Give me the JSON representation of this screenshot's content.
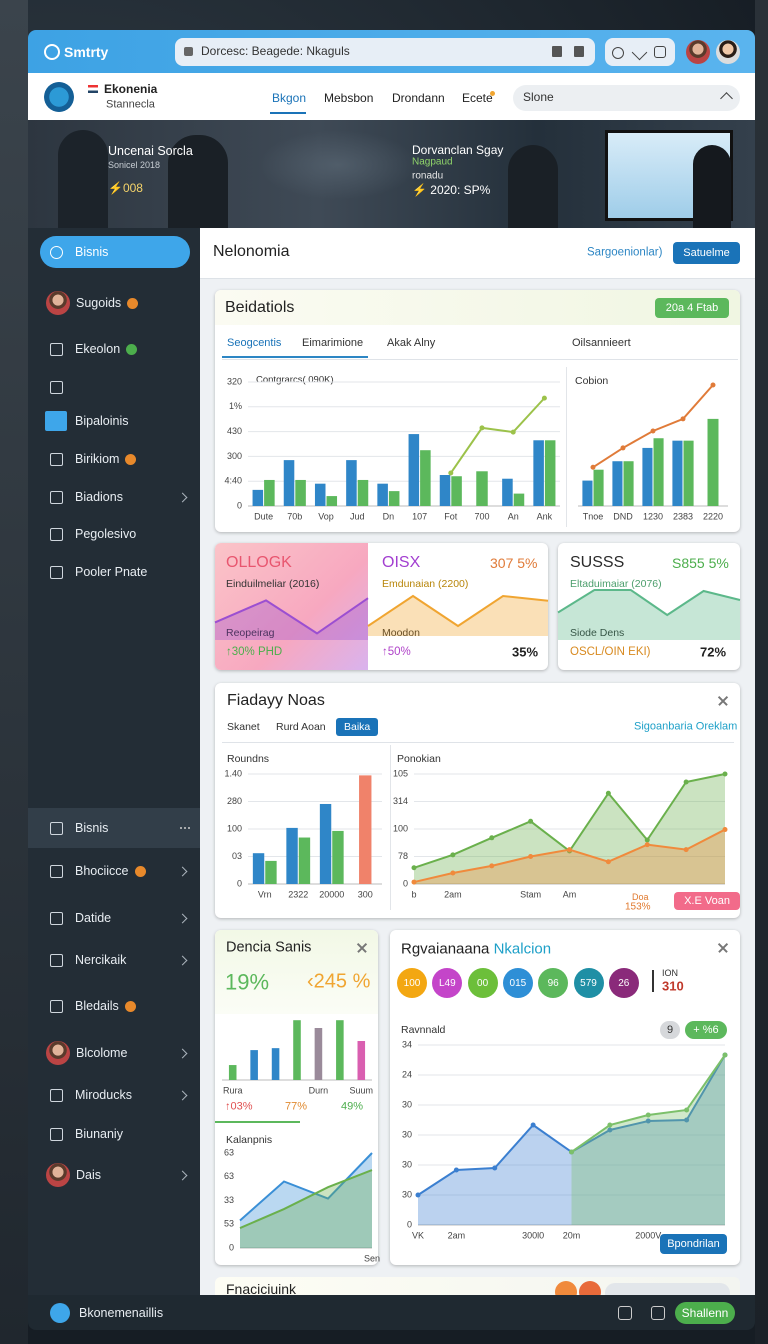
{
  "browser": {
    "app_name": "Smtrty",
    "address": "Dorcesc: Beagede: Nkaguls"
  },
  "header": {
    "brand": "Ekonenia",
    "brand_sub": "Stannecla",
    "nav": [
      "Bkgon",
      "Mebsbon",
      "Drondann",
      "Ecete"
    ],
    "search": "Slone"
  },
  "banner": {
    "left_title": "Uncenai Sorcla",
    "left_sub": "Sonicel 2018",
    "left_stat": "⚡008",
    "right_title": "Dorvanclan Sgay",
    "right_sub": "Nagpaud",
    "right_note": "ronadu",
    "right_stat": "⚡ 2020: SP%"
  },
  "sidebar": {
    "top": [
      {
        "label": "Bisnis",
        "active": true
      },
      {
        "label": "Sugoids",
        "avatar": true,
        "badge": "#e8892b"
      },
      {
        "label": "Ekeolon",
        "badge": "#4cae4c"
      },
      {
        "label": "Bipaloinis",
        "highlight_icon": true
      },
      {
        "label": "Birikiom",
        "badge": "#e8892b"
      },
      {
        "label": "Biadions",
        "submenu": true
      },
      {
        "label": "Pegolesivo"
      },
      {
        "label": "Pooler Pnate"
      }
    ],
    "bottom": [
      {
        "label": "Bisnis",
        "selected": true
      },
      {
        "label": "Bhociicce",
        "badge": "#e8892b",
        "submenu": true
      },
      {
        "label": "Datide",
        "submenu": true
      },
      {
        "label": "Nercikaik",
        "submenu": true
      },
      {
        "label": "Bledails",
        "badge": "#e8892b"
      },
      {
        "label": "Blcolome",
        "avatar": true,
        "submenu": true
      },
      {
        "label": "Miroducks",
        "submenu": true
      },
      {
        "label": "Biunaniy"
      },
      {
        "label": "Dais",
        "avatar": true,
        "submenu": true
      }
    ]
  },
  "page": {
    "title": "Nelonomia",
    "link": "Sargoenionlar)",
    "button": "Satuelme"
  },
  "overview": {
    "title": "Beidatiols",
    "badge": "20a 4 Ftab",
    "tabs": [
      "Seogcentis",
      "Eimarimione",
      "Akak Alny",
      "Oilsannieert"
    ],
    "charts": [
      {
        "type": "bar",
        "legend": "Contgrarcs( 090K)",
        "categories": [
          "Dute",
          "70b",
          "Vop",
          "Jud",
          "Dn",
          "107",
          "Fot",
          "700",
          "An",
          "Ank"
        ],
        "series": [
          {
            "color": "#2f86c8",
            "values": [
              65,
              185,
              90,
              185,
              90,
              290,
              125,
              null,
              110,
              265
            ]
          },
          {
            "color": "#5cb85c",
            "values": [
              105,
              105,
              40,
              105,
              60,
              225,
              120,
              140,
              50,
              265
            ]
          },
          {
            "kind": "line",
            "color": "#9cc24a",
            "values": [
              null,
              null,
              null,
              null,
              null,
              null,
              133,
              315,
              298,
              435
            ]
          }
        ],
        "ylim": [
          0,
          500
        ],
        "yticks": [
          0,
          {
            "value": 100,
            "label": "4:40"
          },
          {
            "value": 200,
            "label": "300"
          },
          {
            "value": 300,
            "label": "430"
          },
          {
            "value": 400,
            "label": "1%"
          },
          {
            "value": 500,
            "label": "320"
          }
        ],
        "grid": true
      },
      {
        "type": "bar",
        "title": "Cobion",
        "categories": [
          "Tnoe",
          "DND",
          "1230",
          "2383",
          "2220"
        ],
        "series": [
          {
            "color": "#2f86c8",
            "values": [
              105,
              185,
              240,
              270,
              null
            ]
          },
          {
            "color": "#5cb85c",
            "values": [
              150,
              185,
              280,
              270,
              360
            ]
          },
          {
            "kind": "line",
            "color": "#e07b39",
            "values": [
              160,
              240,
              310,
              360,
              500
            ]
          }
        ],
        "ylim": [
          0,
          500
        ],
        "grid": true
      }
    ]
  },
  "kpis": [
    {
      "title": "OLLOGK",
      "subtitle": "Einduilmeliar (2016)",
      "label": "Reopeirag",
      "change": "↑30% PHD",
      "chart": {
        "type": "area",
        "series": [
          {
            "color": "#9b4fd1",
            "values": [
              40,
              90,
              15,
              95
            ]
          }
        ],
        "ylim": [
          0,
          100
        ]
      }
    },
    {
      "title": "OISX",
      "figure": "307 5%",
      "subtitle": "Emdunaian (2200)",
      "label": "Moodon",
      "change": "↑50%",
      "share": "35%",
      "chart": {
        "type": "area",
        "series": [
          {
            "color": "#f0a531",
            "values": [
              25,
              100,
              25,
              100,
              88
            ]
          }
        ],
        "ylim": [
          0,
          100
        ]
      }
    },
    {
      "title": "SUSSS",
      "figure": "S855 5%",
      "subtitle": "Eltaduimaiar (2076)",
      "label": "Siode Dens",
      "change": "OSCL/OIN EKI)",
      "share": "72%",
      "chart": {
        "type": "area",
        "series": [
          {
            "color": "#5cb88a",
            "values": [
              55,
              100,
              100,
              50,
              98,
              80
            ]
          }
        ],
        "ylim": [
          0,
          100
        ]
      }
    }
  ],
  "activity": {
    "title": "Fiadayy Noas",
    "tabs": [
      "Skanet",
      "Rurd Aoan",
      "Baika"
    ],
    "active_tab": 2,
    "link": "Sigoanbaria Oreklam",
    "note": [
      "Doa",
      "153%"
    ],
    "button": "X.E Voan",
    "charts": [
      {
        "type": "bar",
        "title": "Roundns",
        "categories": [
          "Vrn",
          "2322",
          "20000",
          "300"
        ],
        "series": [
          {
            "color": "#2f86c8",
            "values": [
              112,
              204,
              291,
              null
            ]
          },
          {
            "color": "#5cb85c",
            "values": [
              84,
              169,
              193,
              null
            ]
          },
          {
            "color": "#f0826a",
            "values": [
              null,
              null,
              null,
              395
            ]
          }
        ],
        "ylim": [
          0,
          400
        ],
        "yticks": [
          0,
          {
            "value": 100,
            "label": "03"
          },
          {
            "value": 200,
            "label": "100"
          },
          {
            "value": 300,
            "label": "280"
          },
          {
            "value": 400,
            "label": "1.40"
          }
        ],
        "grid": true
      },
      {
        "type": "area",
        "title": "Ponokian",
        "categories": [
          "b",
          "2am",
          null,
          "Stam",
          "Am",
          null,
          null,
          null,
          null
        ],
        "series": [
          {
            "color": "#6ab04c",
            "values": [
              59,
              106,
              168,
              228,
              120,
              330,
              160,
              371,
              400
            ]
          },
          {
            "color": "#f08a3c",
            "values": [
              7,
              40,
              66,
              100,
              125,
              81,
              143,
              125,
              198
            ]
          }
        ],
        "ylim": [
          0,
          400
        ],
        "yticks": [
          0,
          {
            "value": 100,
            "label": "78"
          },
          {
            "value": 200,
            "label": "100"
          },
          {
            "value": 300,
            "label": "314"
          },
          {
            "value": 400,
            "label": "105"
          }
        ],
        "grid": true,
        "markers": true
      }
    ]
  },
  "sales": {
    "title": "Dencia Sanis",
    "figure": "19%",
    "figure2": "‹245 %",
    "changes": [
      "↑03%",
      "77%",
      "49%"
    ],
    "chart": {
      "type": "bar",
      "categories": [
        "Rura",
        null,
        null,
        null,
        "Durn",
        null,
        "Suum"
      ],
      "series": [
        {
          "colors": [
            "#5cb85c",
            "#2f86c8",
            "#2f86c8",
            "#5cb85c",
            "#9a8a9a",
            "#5cb85c",
            "#d95fb0"
          ],
          "values": [
            23,
            46,
            49,
            92,
            80,
            92,
            60
          ]
        }
      ],
      "ylim": [
        0,
        100
      ]
    },
    "chart2": {
      "type": "area",
      "title": "Kalanpnis",
      "categories": [
        null,
        null,
        null,
        "Sen"
      ],
      "series": [
        {
          "color": "#3a8fd6",
          "values": [
            29,
            70,
            52,
            100
          ]
        },
        {
          "color": "#6ab04c",
          "values": [
            21,
            41,
            64,
            82
          ]
        }
      ],
      "ylim": [
        0,
        100
      ],
      "yticks": [
        0,
        {
          "value": 25,
          "label": "53"
        },
        {
          "value": 50,
          "label": "33"
        },
        {
          "value": 75,
          "label": "63"
        },
        {
          "value": 100,
          "label": "63"
        }
      ]
    }
  },
  "revenue": {
    "title": "Rgvaianaana",
    "title_accent": "Nkalcion",
    "badges": [
      {
        "label": "100",
        "color": "#f3a712"
      },
      {
        "label": "L49",
        "color": "#c445c9"
      },
      {
        "label": "00",
        "color": "#6cbf3a"
      },
      {
        "label": "015",
        "color": "#2e8fd6"
      },
      {
        "label": "96",
        "color": "#5cb85c"
      },
      {
        "label": "579",
        "color": "#1f8fa5"
      },
      {
        "label": "26",
        "color": "#8a2a7a"
      }
    ],
    "stat_label": "ION",
    "stat": "310",
    "pills": [
      "9",
      "+ %6"
    ],
    "button": "Bpondrilan",
    "chart": {
      "type": "area",
      "title": "Ravnnald",
      "categories": [
        "VK",
        "2am",
        null,
        "300l0",
        "20m",
        null,
        "2000V",
        null,
        null
      ],
      "series": [
        {
          "color": "#3b7fd0",
          "values": [
            30,
            55,
            57,
            100,
            73,
            95,
            104,
            105,
            170
          ]
        },
        {
          "color": "#7cc06a",
          "values": [
            null,
            null,
            null,
            null,
            73,
            100,
            110,
            115,
            170
          ]
        }
      ],
      "ylim": [
        0,
        180
      ],
      "yticks": [
        0,
        30,
        {
          "value": 60,
          "label": "30"
        },
        {
          "value": 90,
          "label": "30"
        },
        {
          "value": 120,
          "label": "30"
        },
        {
          "value": 150,
          "label": "24"
        },
        {
          "value": 180,
          "label": "34"
        }
      ],
      "grid": true,
      "markers": true
    }
  },
  "footer_card": {
    "title": "Fnaciciuink"
  },
  "bottom_bar": {
    "label": "Bkonemenaillis",
    "button": "Shallenn"
  }
}
